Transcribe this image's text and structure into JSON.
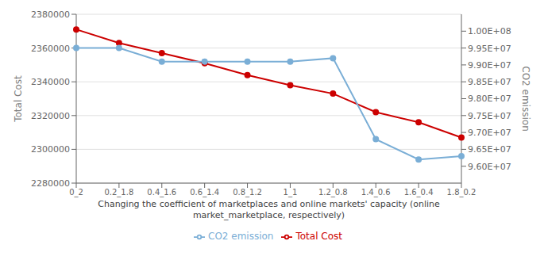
{
  "chart_data": {
    "type": "line",
    "categories": [
      "0_2",
      "0.2_1.8",
      "0.4_1.6",
      "0.6_1.4",
      "0.8_1.2",
      "1_1",
      "1.2_0.8",
      "1.4_0.6",
      "1.6_0.4",
      "1.8_0.2"
    ],
    "series": [
      {
        "name": "Total Cost",
        "color": "#cc0000",
        "marker": "circle",
        "values": [
          2371000,
          2363000,
          2357000,
          2351000,
          2344000,
          2338000,
          2333000,
          2322000,
          2316000,
          2307000
        ]
      },
      {
        "name": "CO2 emission",
        "color": "#7aaed6",
        "marker": "circle",
        "axis": "y2",
        "values": [
          99500000,
          99500000,
          99100000,
          99100000,
          99100000,
          99100000,
          99200000,
          96800000,
          96200000,
          96300000
        ]
      }
    ],
    "xlabel": "Changing the coefficient of marketplaces and online markets' capacity (online\nmarket_marketplace, respectively)",
    "ylabel": "Total Cost",
    "y2label": "CO2 emission",
    "ylim": [
      2280000,
      2380000
    ],
    "yticks": [
      2280000,
      2300000,
      2320000,
      2340000,
      2360000,
      2380000
    ],
    "y2lim": [
      95500000,
      100500000
    ],
    "y2ticks": [
      {
        "value": 96000000,
        "label": "9.60E+07"
      },
      {
        "value": 96500000,
        "label": "9.65E+07"
      },
      {
        "value": 97000000,
        "label": "9.70E+07"
      },
      {
        "value": 97500000,
        "label": "9.75E+07"
      },
      {
        "value": 98000000,
        "label": "9.80E+07"
      },
      {
        "value": 98500000,
        "label": "9.85E+07"
      },
      {
        "value": 99000000,
        "label": "9.90E+07"
      },
      {
        "value": 99500000,
        "label": "9.95E+07"
      },
      {
        "value": 100000000,
        "label": "1.00E+08"
      }
    ],
    "grid": true,
    "legend": "bottom"
  }
}
